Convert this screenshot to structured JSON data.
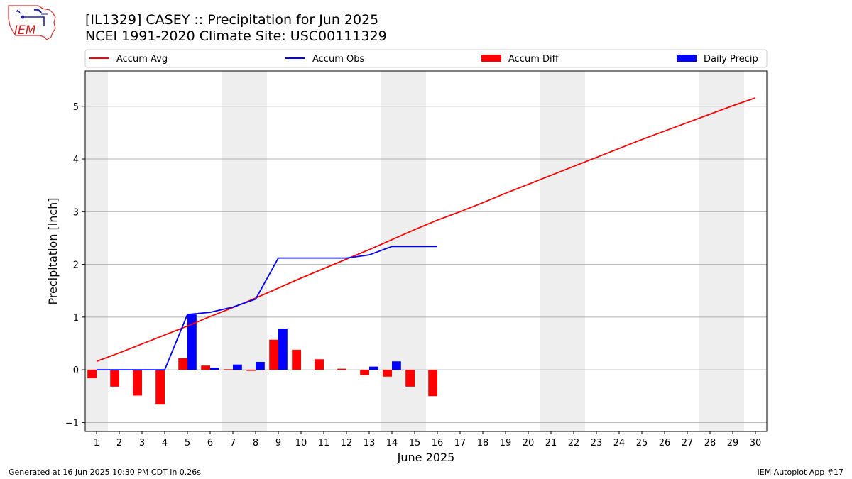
{
  "header": {
    "logo_text": "IEM",
    "title_line1": "[IL1329] CASEY :: Precipitation for Jun 2025",
    "title_line2": "NCEI 1991-2020 Climate Site: USC00111329"
  },
  "footer": {
    "left": "Generated at 16 Jun 2025 10:30 PM CDT in 0.26s",
    "right": "IEM Autoplot App #17"
  },
  "colors": {
    "accum_avg": "#ff0000",
    "accum_obs": "#0000ff",
    "accum_diff": "#ff0000",
    "daily_precip": "#0000ff",
    "weekend_shade": "#eeeeee",
    "grid": "#b0b0b0"
  },
  "chart_data": {
    "type": "bar",
    "xlabel": "June 2025",
    "ylabel": "Precipitation [inch]",
    "xlim": [
      0.5,
      30.5
    ],
    "ylim": [
      -1.17,
      5.67
    ],
    "x_ticks": [
      1,
      2,
      3,
      4,
      5,
      6,
      7,
      8,
      9,
      10,
      11,
      12,
      13,
      14,
      15,
      16,
      17,
      18,
      19,
      20,
      21,
      22,
      23,
      24,
      25,
      26,
      27,
      28,
      29,
      30
    ],
    "x_tick_labels": [
      "1",
      "2",
      "3",
      "4",
      "5",
      "6",
      "7",
      "8",
      "9",
      "10",
      "11",
      "12",
      "13",
      "14",
      "15",
      "16",
      "17",
      "18",
      "19",
      "20",
      "21",
      "22",
      "23",
      "24",
      "25",
      "26",
      "27",
      "28",
      "29",
      "30"
    ],
    "y_ticks": [
      -1,
      0,
      1,
      2,
      3,
      4,
      5
    ],
    "y_tick_labels": [
      "−1",
      "0",
      "1",
      "2",
      "3",
      "4",
      "5"
    ],
    "grid": "horizontal",
    "legend_placement": "top",
    "weekend_days": [
      1,
      7,
      8,
      14,
      15,
      21,
      22,
      28,
      29
    ],
    "series": [
      {
        "name": "Accum Avg",
        "kind": "line",
        "x": [
          1,
          2,
          3,
          4,
          5,
          6,
          7,
          8,
          9,
          10,
          11,
          12,
          13,
          14,
          15,
          16,
          17,
          18,
          19,
          20,
          21,
          22,
          23,
          24,
          25,
          26,
          27,
          28,
          29,
          30
        ],
        "values": [
          0.16,
          0.32,
          0.49,
          0.66,
          0.83,
          1.01,
          1.18,
          1.36,
          1.55,
          1.74,
          1.92,
          2.1,
          2.28,
          2.47,
          2.66,
          2.84,
          3.0,
          3.17,
          3.35,
          3.52,
          3.69,
          3.86,
          4.03,
          4.2,
          4.37,
          4.53,
          4.69,
          4.85,
          5.01,
          5.16
        ]
      },
      {
        "name": "Accum Obs",
        "kind": "line",
        "x": [
          1,
          2,
          3,
          4,
          5,
          6,
          7,
          8,
          9,
          10,
          11,
          12,
          13,
          14,
          15,
          16
        ],
        "values": [
          0.0,
          0.0,
          0.0,
          0.0,
          1.05,
          1.09,
          1.19,
          1.34,
          2.12,
          2.12,
          2.12,
          2.12,
          2.18,
          2.34,
          2.34,
          2.34
        ]
      },
      {
        "name": "Accum Diff",
        "kind": "bar",
        "offset": "left",
        "x": [
          1,
          2,
          3,
          4,
          5,
          6,
          7,
          8,
          9,
          10,
          11,
          12,
          13,
          14,
          15,
          16
        ],
        "values": [
          -0.16,
          -0.32,
          -0.49,
          -0.66,
          0.22,
          0.08,
          0.01,
          -0.02,
          0.57,
          0.38,
          0.2,
          0.02,
          -0.1,
          -0.13,
          -0.32,
          -0.5
        ]
      },
      {
        "name": "Daily Precip",
        "kind": "bar",
        "offset": "right",
        "x": [
          1,
          2,
          3,
          4,
          5,
          6,
          7,
          8,
          9,
          10,
          11,
          12,
          13,
          14,
          15,
          16
        ],
        "values": [
          0.0,
          0.0,
          0.0,
          0.0,
          1.05,
          0.04,
          0.1,
          0.15,
          0.78,
          0.0,
          0.0,
          0.0,
          0.06,
          0.16,
          0.0,
          0.0
        ]
      }
    ]
  }
}
